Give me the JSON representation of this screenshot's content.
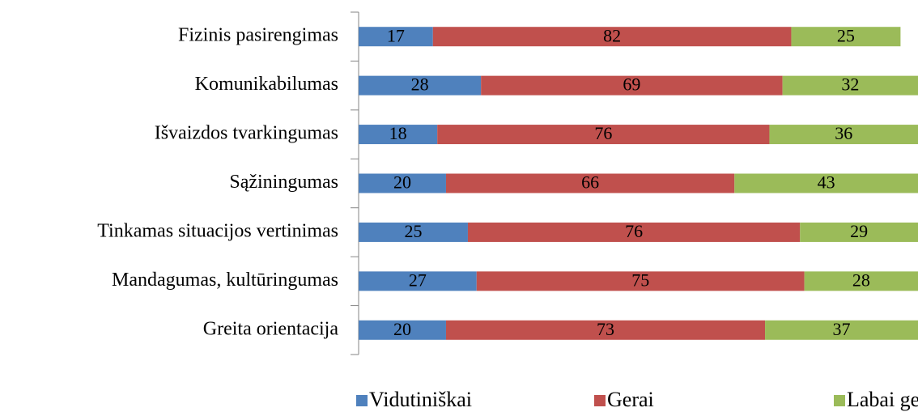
{
  "chart_data": {
    "type": "bar",
    "orientation": "horizontal",
    "stacked": true,
    "categories": [
      "Fizinis pasirengimas",
      "Komunikabilumas",
      "Išvaizdos tvarkingumas",
      "Sąžiningumas",
      "Tinkamas situacijos vertinimas",
      "Mandagumas, kultūringumas",
      "Greita orientacija"
    ],
    "series": [
      {
        "name": "Vidutiniškai",
        "color": "#4f81bd",
        "values": [
          17,
          28,
          18,
          20,
          25,
          27,
          20
        ]
      },
      {
        "name": "Gerai",
        "color": "#c0504d",
        "values": [
          82,
          69,
          76,
          66,
          76,
          75,
          73
        ]
      },
      {
        "name": "Labai gerai",
        "color": "#9bbb59",
        "values": [
          25,
          32,
          36,
          43,
          29,
          28,
          37
        ]
      }
    ],
    "xlim": [
      0,
      128
    ],
    "legend": "bottom"
  }
}
